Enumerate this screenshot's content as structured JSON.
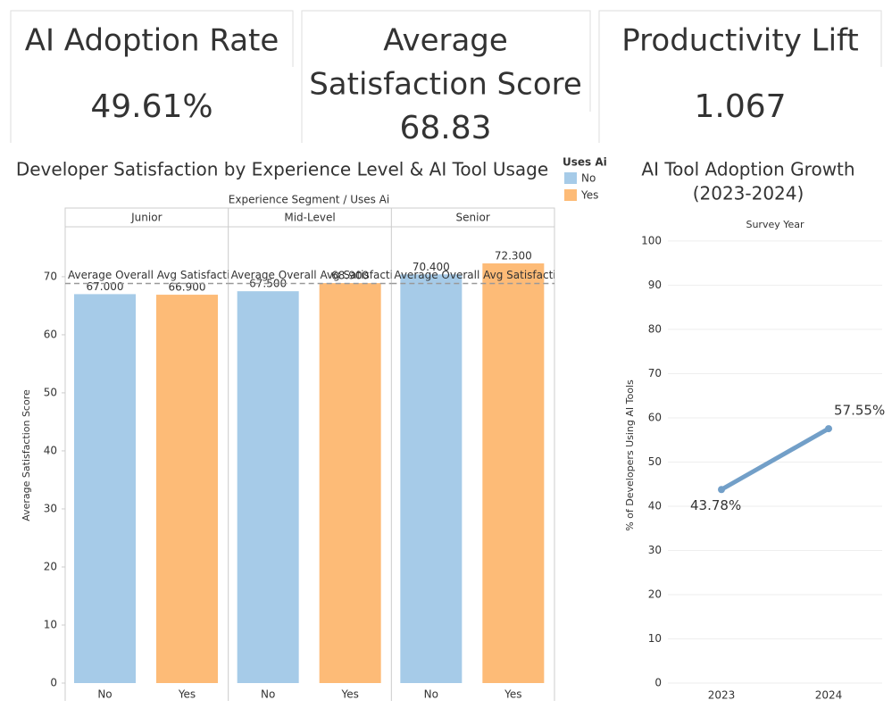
{
  "kpis": [
    {
      "title": [
        "AI Adoption Rate"
      ],
      "value": "49.61%"
    },
    {
      "title": [
        "Average",
        "Satisfaction Score"
      ],
      "value": "68.83"
    },
    {
      "title": [
        "Productivity Lift"
      ],
      "value": "1.067"
    }
  ],
  "chart_data": [
    {
      "type": "grouped_bar",
      "title": "Developer Satisfaction by Experience Level & AI Tool Usage",
      "x_label": "Experience Segment / Uses Ai",
      "y_label": "Average Satisfaction Score",
      "legend_title": "Uses Ai",
      "categories": [
        "Junior",
        "Mid-Level",
        "Senior"
      ],
      "series": [
        {
          "name": "No",
          "color": "#a6cbe8",
          "values": [
            67.0,
            67.5,
            70.4
          ],
          "value_labels": [
            "67.000",
            "67.500",
            "70.400"
          ]
        },
        {
          "name": "Yes",
          "color": "#fdbb77",
          "values": [
            66.9,
            68.9,
            72.3
          ],
          "value_labels": [
            "66.900",
            "68.900",
            "72.300"
          ]
        }
      ],
      "reference_line": {
        "value": 68.83,
        "label": "Average Overall Avg Satisfaction"
      },
      "ylim": [
        0,
        78.6
      ],
      "yticks": [
        0,
        10,
        20,
        30,
        40,
        50,
        60,
        70
      ],
      "grid": false
    },
    {
      "type": "line",
      "title": [
        "AI Tool Adoption Growth",
        "(2023-2024)"
      ],
      "x_label": "Survey Year",
      "y_label": "% of Developers Using AI Tools",
      "categories": [
        "2023",
        "2024"
      ],
      "values": [
        43.78,
        57.55
      ],
      "value_labels": [
        "43.78%",
        "57.55%"
      ],
      "color": "#729fc8",
      "ylim": [
        0,
        101.6
      ],
      "yticks": [
        0,
        10,
        20,
        30,
        40,
        50,
        60,
        70,
        80,
        90,
        100
      ],
      "grid": true
    }
  ]
}
